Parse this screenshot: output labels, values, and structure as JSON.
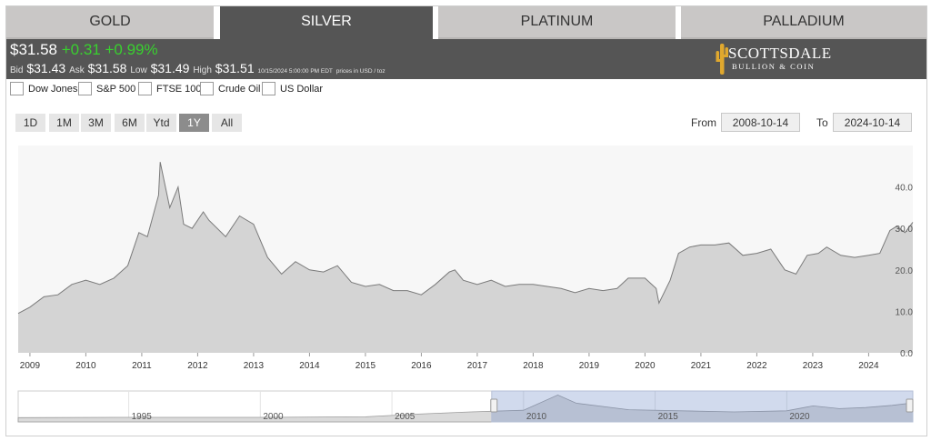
{
  "tabs": [
    {
      "label": "GOLD"
    },
    {
      "label": "SILVER"
    },
    {
      "label": "PLATINUM"
    },
    {
      "label": "PALLADIUM"
    }
  ],
  "quote": {
    "price": "$31.58",
    "change": "+0.31",
    "change_pct": "+0.99%",
    "bid_label": "Bid",
    "bid": "$31.43",
    "ask_label": "Ask",
    "ask": "$31.58",
    "low_label": "Low",
    "low": "$31.49",
    "high_label": "High",
    "high": "$31.51",
    "timestamp": "10/15/2024 5:00:00 PM EDT",
    "units": "prices in USD / toz",
    "change_color": "#39d02f"
  },
  "logo": {
    "name": "SCOTTSDALE",
    "sub": "BULLION & COIN",
    "icon": "cactus-icon"
  },
  "compare": [
    {
      "label": "Dow Jones"
    },
    {
      "label": "S&P 500"
    },
    {
      "label": "FTSE 100"
    },
    {
      "label": "Crude Oil"
    },
    {
      "label": "US Dollar"
    }
  ],
  "ranges": [
    {
      "label": "1D"
    },
    {
      "label": "1M"
    },
    {
      "label": "3M"
    },
    {
      "label": "6M"
    },
    {
      "label": "Ytd"
    },
    {
      "label": "1Y",
      "active": true
    },
    {
      "label": "All"
    }
  ],
  "date_range": {
    "from_label": "From",
    "from": "2008-10-14",
    "to_label": "To",
    "to": "2024-10-14"
  },
  "chart_data": {
    "type": "area",
    "series": [
      {
        "x": [
          2008.79,
          2009.0,
          2009.25,
          2009.5,
          2009.75,
          2010.0,
          2010.25,
          2010.5,
          2010.75,
          2010.95,
          2011.1,
          2011.3,
          2011.33,
          2011.5,
          2011.65,
          2011.75,
          2011.9,
          2012.1,
          2012.2,
          2012.5,
          2012.75,
          2013.0,
          2013.25,
          2013.5,
          2013.75,
          2014.0,
          2014.25,
          2014.5,
          2014.75,
          2015.0,
          2015.25,
          2015.5,
          2015.75,
          2016.0,
          2016.25,
          2016.5,
          2016.6,
          2016.75,
          2017.0,
          2017.25,
          2017.5,
          2017.75,
          2018.0,
          2018.25,
          2018.5,
          2018.75,
          2019.0,
          2019.25,
          2019.5,
          2019.7,
          2020.0,
          2020.2,
          2020.25,
          2020.45,
          2020.6,
          2020.8,
          2021.0,
          2021.25,
          2021.5,
          2021.75,
          2022.0,
          2022.25,
          2022.5,
          2022.7,
          2022.9,
          2023.1,
          2023.25,
          2023.5,
          2023.75,
          2024.0,
          2024.2,
          2024.38,
          2024.5,
          2024.65,
          2024.79
        ],
        "values": [
          9.5,
          11.0,
          13.5,
          14.0,
          16.5,
          17.5,
          16.5,
          18.0,
          21.0,
          29.0,
          28.0,
          38.0,
          46.0,
          35.0,
          40.0,
          31.0,
          30.0,
          34.0,
          32.0,
          28.0,
          33.0,
          31.0,
          23.0,
          19.0,
          22.0,
          20.0,
          19.5,
          21.0,
          17.0,
          16.0,
          16.5,
          15.0,
          15.0,
          14.0,
          16.5,
          19.5,
          20.0,
          17.5,
          16.5,
          17.5,
          16.0,
          16.5,
          16.5,
          16.0,
          15.5,
          14.5,
          15.5,
          15.0,
          15.5,
          18.0,
          18.0,
          15.5,
          12.0,
          17.5,
          24.0,
          25.5,
          26.0,
          26.0,
          26.5,
          23.5,
          24.0,
          25.0,
          20.0,
          19.0,
          23.5,
          24.0,
          25.5,
          23.5,
          23.0,
          23.5,
          24.0,
          29.5,
          30.5,
          29.0,
          31.5
        ]
      }
    ],
    "x_ticks": [
      "2009",
      "2010",
      "2011",
      "2012",
      "2013",
      "2014",
      "2015",
      "2016",
      "2017",
      "2018",
      "2019",
      "2020",
      "2021",
      "2022",
      "2023",
      "2024"
    ],
    "y_ticks": [
      "0.0",
      "10.0",
      "20.0",
      "30.0",
      "40.0"
    ],
    "ylim": [
      0,
      50
    ],
    "xlim": [
      2008.79,
      2024.79
    ],
    "grid": false,
    "navigator": {
      "x_ticks": [
        "1995",
        "2000",
        "2005",
        "2010",
        "2015",
        "2020"
      ],
      "xlim": [
        1990.8,
        2024.79
      ],
      "selection": [
        2008.79,
        2024.79
      ],
      "x": [
        1990.8,
        1995,
        2000,
        2004,
        2006,
        2008,
        2010,
        2011.3,
        2012,
        2014,
        2016,
        2018,
        2020,
        2021,
        2022,
        2023,
        2024,
        2024.79
      ],
      "values": [
        4.5,
        5.0,
        5.0,
        6.0,
        11.0,
        15.0,
        18.0,
        46.0,
        31.0,
        19.0,
        17.0,
        15.0,
        17.0,
        26.0,
        21.0,
        23.0,
        27.0,
        31.5
      ]
    },
    "fill_color": "#d4d4d4",
    "line_color": "#7a7a7a"
  }
}
